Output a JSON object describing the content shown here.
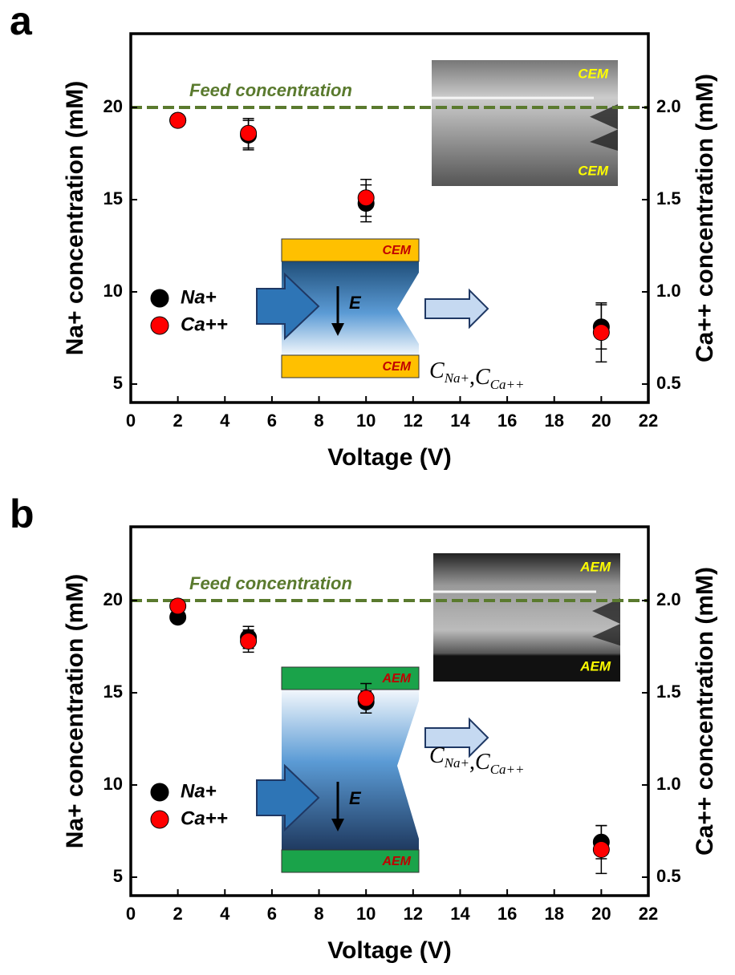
{
  "chart_data": [
    {
      "type": "scatter",
      "panel_label": "a",
      "xlabel": "Voltage (V)",
      "ylabel": "Na+ concentration (mM)",
      "y2label": "Ca++ concentration (mM)",
      "x": [
        2,
        5,
        10,
        20
      ],
      "series": [
        {
          "name": "Na+",
          "color": "#000000",
          "axis": "y",
          "values": [
            19.3,
            18.5,
            14.8,
            8.1
          ],
          "errors": [
            0.3,
            0.8,
            1.0,
            1.2
          ]
        },
        {
          "name": "Ca++",
          "color": "#ff0000",
          "axis": "y2",
          "values": [
            1.93,
            1.86,
            1.51,
            0.78
          ],
          "errors": [
            0.03,
            0.08,
            0.1,
            0.16
          ]
        }
      ],
      "xlim": [
        0,
        22
      ],
      "xticks": [
        0,
        2,
        4,
        6,
        8,
        10,
        12,
        14,
        16,
        18,
        20,
        22
      ],
      "ylim": [
        4,
        24
      ],
      "yticks": [
        5,
        10,
        15,
        20
      ],
      "y2lim": [
        0.4,
        2.4
      ],
      "y2ticks": [
        0.5,
        {
          "value": 1,
          "label": "1.0"
        },
        1.5,
        {
          "value": 2,
          "label": "2.0"
        }
      ],
      "reference_line": {
        "label": "Feed concentration",
        "value": 20,
        "color": "#5a7a2e"
      },
      "membrane_color": "#ffc000",
      "photo_labels": [
        "CEM",
        "CEM"
      ],
      "diagram_labels": [
        "CEM",
        "CEM"
      ],
      "field_label": "E",
      "formula_terms": [
        {
          "base": "C",
          "sub": "Na+"
        },
        {
          "base": "C",
          "sub": "Ca++"
        }
      ],
      "formula_separator": ","
    },
    {
      "type": "scatter",
      "panel_label": "b",
      "xlabel": "Voltage (V)",
      "ylabel": "Na+ concentration (mM)",
      "y2label": "Ca++ concentration (mM)",
      "x": [
        2,
        5,
        10,
        20
      ],
      "series": [
        {
          "name": "Na+",
          "color": "#000000",
          "axis": "y",
          "values": [
            19.1,
            18.0,
            14.5,
            6.9
          ],
          "errors": [
            0.3,
            0.6,
            0.6,
            0.9
          ]
        },
        {
          "name": "Ca++",
          "color": "#ff0000",
          "axis": "y2",
          "values": [
            1.97,
            1.78,
            1.47,
            0.65
          ],
          "errors": [
            0.03,
            0.06,
            0.08,
            0.13
          ]
        }
      ],
      "xlim": [
        0,
        22
      ],
      "xticks": [
        0,
        2,
        4,
        6,
        8,
        10,
        12,
        14,
        16,
        18,
        20,
        22
      ],
      "ylim": [
        4,
        24
      ],
      "yticks": [
        5,
        10,
        15,
        20
      ],
      "y2lim": [
        0.4,
        2.4
      ],
      "y2ticks": [
        0.5,
        {
          "value": 1,
          "label": "1.0"
        },
        1.5,
        {
          "value": 2,
          "label": "2.0"
        }
      ],
      "reference_line": {
        "label": "Feed concentration",
        "value": 20,
        "color": "#5a7a2e"
      },
      "membrane_color": "#1aa34a",
      "photo_labels": [
        "AEM",
        "AEM"
      ],
      "diagram_labels": [
        "AEM",
        "AEM"
      ],
      "field_label": "E",
      "formula_terms": [
        {
          "base": "C",
          "sub": "Na+"
        },
        {
          "base": "C",
          "sub": "Ca++"
        }
      ],
      "formula_separator": ","
    }
  ]
}
